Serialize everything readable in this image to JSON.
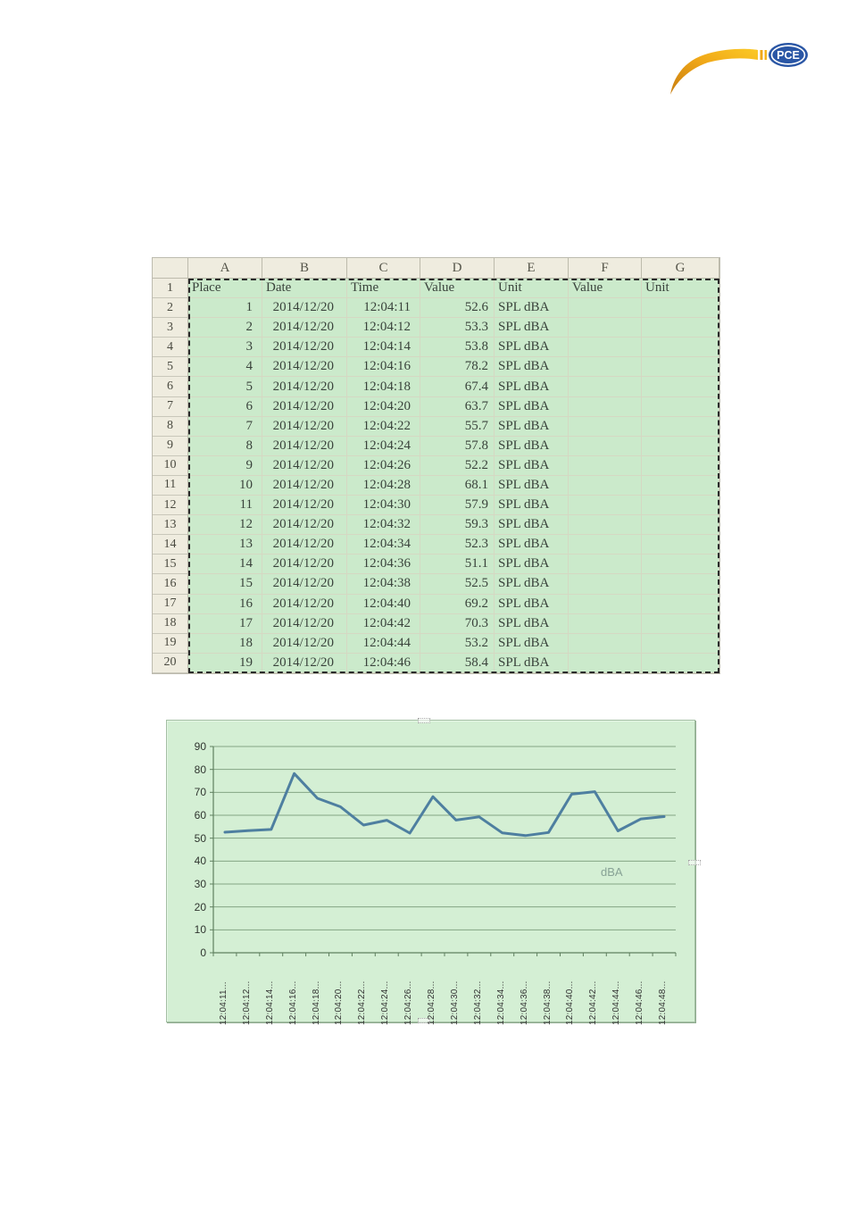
{
  "logo": {
    "text": "PCE",
    "badge_color": "#2a56a5",
    "swoosh_color_dark": "#c87d10",
    "swoosh_color_light": "#fbc926"
  },
  "spreadsheet": {
    "column_letters": [
      "A",
      "B",
      "C",
      "D",
      "E",
      "F",
      "G"
    ],
    "header_row": {
      "row_number": "1",
      "cells": [
        "Place",
        "Date",
        "Time",
        "Value",
        "Unit",
        "Value",
        "Unit"
      ]
    },
    "rows": [
      {
        "row_number": "2",
        "place": "1",
        "date": "2014/12/20",
        "time": "12:04:11",
        "value": "52.6",
        "unit": "SPL dBA"
      },
      {
        "row_number": "3",
        "place": "2",
        "date": "2014/12/20",
        "time": "12:04:12",
        "value": "53.3",
        "unit": "SPL dBA"
      },
      {
        "row_number": "4",
        "place": "3",
        "date": "2014/12/20",
        "time": "12:04:14",
        "value": "53.8",
        "unit": "SPL dBA"
      },
      {
        "row_number": "5",
        "place": "4",
        "date": "2014/12/20",
        "time": "12:04:16",
        "value": "78.2",
        "unit": "SPL dBA"
      },
      {
        "row_number": "6",
        "place": "5",
        "date": "2014/12/20",
        "time": "12:04:18",
        "value": "67.4",
        "unit": "SPL dBA"
      },
      {
        "row_number": "7",
        "place": "6",
        "date": "2014/12/20",
        "time": "12:04:20",
        "value": "63.7",
        "unit": "SPL dBA"
      },
      {
        "row_number": "8",
        "place": "7",
        "date": "2014/12/20",
        "time": "12:04:22",
        "value": "55.7",
        "unit": "SPL dBA"
      },
      {
        "row_number": "9",
        "place": "8",
        "date": "2014/12/20",
        "time": "12:04:24",
        "value": "57.8",
        "unit": "SPL dBA"
      },
      {
        "row_number": "10",
        "place": "9",
        "date": "2014/12/20",
        "time": "12:04:26",
        "value": "52.2",
        "unit": "SPL dBA"
      },
      {
        "row_number": "11",
        "place": "10",
        "date": "2014/12/20",
        "time": "12:04:28",
        "value": "68.1",
        "unit": "SPL dBA"
      },
      {
        "row_number": "12",
        "place": "11",
        "date": "2014/12/20",
        "time": "12:04:30",
        "value": "57.9",
        "unit": "SPL dBA"
      },
      {
        "row_number": "13",
        "place": "12",
        "date": "2014/12/20",
        "time": "12:04:32",
        "value": "59.3",
        "unit": "SPL dBA"
      },
      {
        "row_number": "14",
        "place": "13",
        "date": "2014/12/20",
        "time": "12:04:34",
        "value": "52.3",
        "unit": "SPL dBA"
      },
      {
        "row_number": "15",
        "place": "14",
        "date": "2014/12/20",
        "time": "12:04:36",
        "value": "51.1",
        "unit": "SPL dBA"
      },
      {
        "row_number": "16",
        "place": "15",
        "date": "2014/12/20",
        "time": "12:04:38",
        "value": "52.5",
        "unit": "SPL dBA"
      },
      {
        "row_number": "17",
        "place": "16",
        "date": "2014/12/20",
        "time": "12:04:40",
        "value": "69.2",
        "unit": "SPL dBA"
      },
      {
        "row_number": "18",
        "place": "17",
        "date": "2014/12/20",
        "time": "12:04:42",
        "value": "70.3",
        "unit": "SPL dBA"
      },
      {
        "row_number": "19",
        "place": "18",
        "date": "2014/12/20",
        "time": "12:04:44",
        "value": "53.2",
        "unit": "SPL dBA"
      },
      {
        "row_number": "20",
        "place": "19",
        "date": "2014/12/20",
        "time": "12:04:46",
        "value": "58.4",
        "unit": "SPL dBA"
      }
    ]
  },
  "chart_data": {
    "type": "line",
    "title": "",
    "series_label": "dBA",
    "x": [
      "12:04:11...",
      "12:04:12...",
      "12:04:14...",
      "12:04:16...",
      "12:04:18...",
      "12:04:20...",
      "12:04:22...",
      "12:04:24...",
      "12:04:26...",
      "12:04:28...",
      "12:04:30...",
      "12:04:32...",
      "12:04:34...",
      "12:04:36...",
      "12:04:38...",
      "12:04:40...",
      "12:04:42...",
      "12:04:44...",
      "12:04:46...",
      "12:04:48..."
    ],
    "values": [
      52.6,
      53.3,
      53.8,
      78.2,
      67.4,
      63.7,
      55.7,
      57.8,
      52.2,
      68.1,
      57.9,
      59.3,
      52.3,
      51.1,
      52.5,
      69.2,
      70.3,
      53.2,
      58.4,
      59.4
    ],
    "yticks": [
      0,
      10,
      20,
      30,
      40,
      50,
      60,
      70,
      80,
      90
    ],
    "ylim": [
      0,
      90
    ],
    "grid": true,
    "legend_position": "inside-right",
    "line_color": "#4e7fa0",
    "plot_bg": "#d4efd4",
    "grid_color": "#84a584",
    "axis_color": "#5f805f"
  }
}
